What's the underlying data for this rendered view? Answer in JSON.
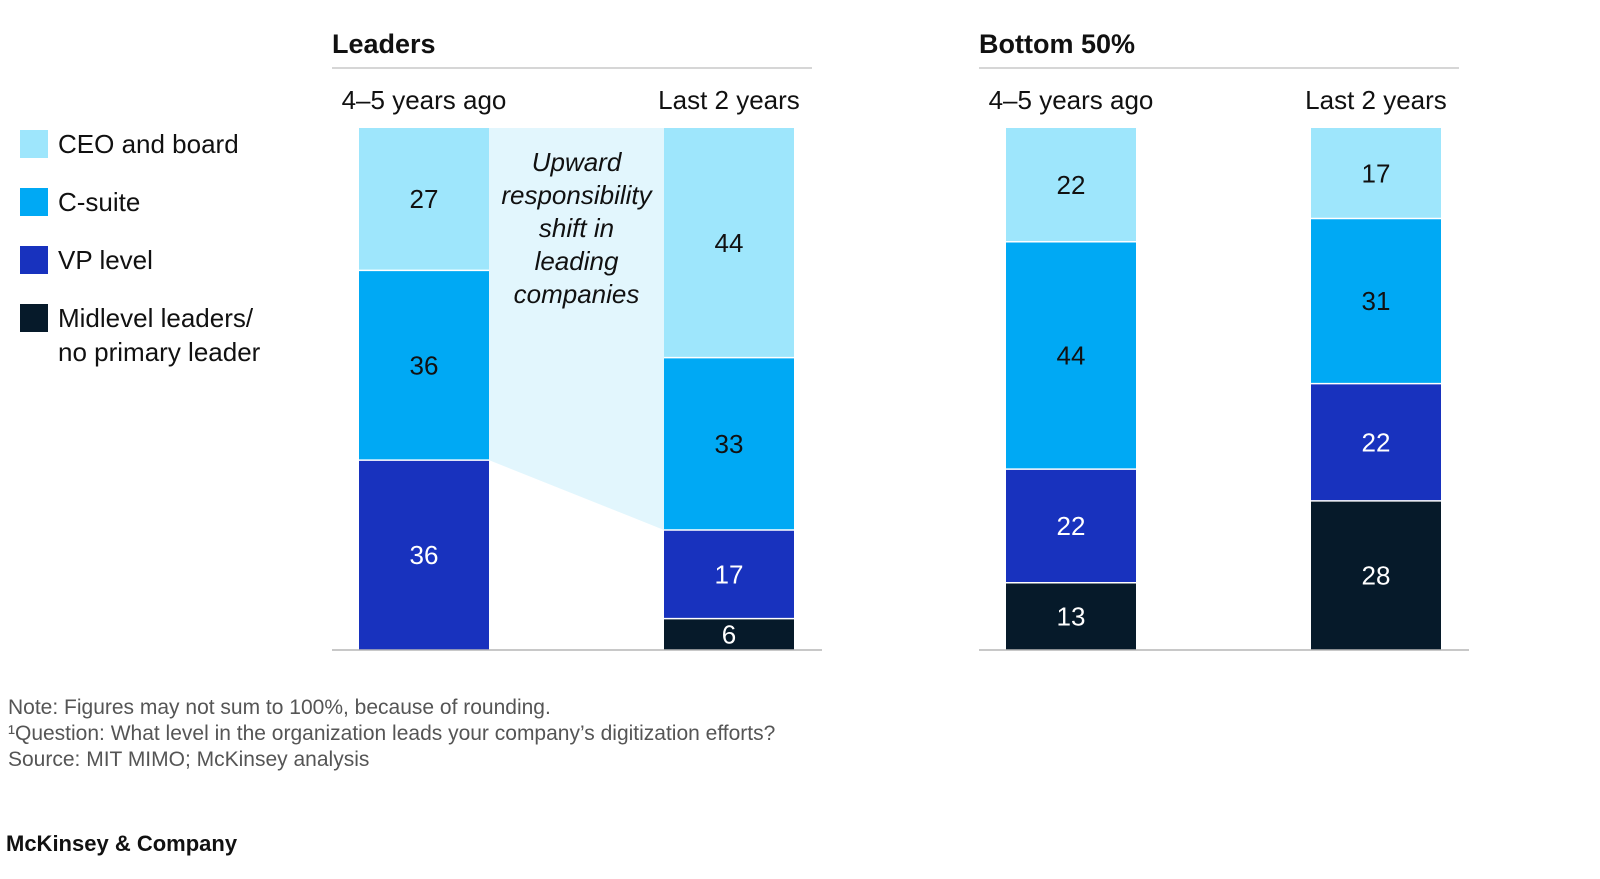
{
  "legend": [
    {
      "label": "CEO and board",
      "color": "#9ee6fc"
    },
    {
      "label": "C-suite",
      "color": "#00a9f4"
    },
    {
      "label": "VP level",
      "color": "#1832be"
    },
    {
      "label": "Midlevel leaders/\nno primary leader",
      "color": "#061a2a"
    }
  ],
  "chart_data": [
    {
      "type": "bar",
      "stacked": true,
      "title": "Leaders",
      "categories": [
        "4–5 years ago",
        "Last 2 years"
      ],
      "series": [
        {
          "name": "CEO and board",
          "values": [
            27,
            44
          ]
        },
        {
          "name": "C-suite",
          "values": [
            36,
            33
          ]
        },
        {
          "name": "VP level",
          "values": [
            36,
            17
          ]
        },
        {
          "name": "Midlevel leaders/ no primary leader",
          "values": [
            0,
            6
          ]
        }
      ],
      "annotation": "Upward responsibility shift in leading companies"
    },
    {
      "type": "bar",
      "stacked": true,
      "title": "Bottom 50%",
      "categories": [
        "4–5 years ago",
        "Last 2 years"
      ],
      "series": [
        {
          "name": "CEO and board",
          "values": [
            22,
            17
          ]
        },
        {
          "name": "C-suite",
          "values": [
            44,
            31
          ]
        },
        {
          "name": "VP level",
          "values": [
            22,
            22
          ]
        },
        {
          "name": "Midlevel leaders/ no primary leader",
          "values": [
            13,
            28
          ]
        }
      ]
    }
  ],
  "footnotes": {
    "note": "Note: Figures may not sum to 100%, because of rounding.",
    "question": "¹Question: What level in the organization leads your company’s digitization efforts?",
    "source": "Source: MIT MIMO; McKinsey analysis"
  },
  "brand": "McKinsey & Company"
}
